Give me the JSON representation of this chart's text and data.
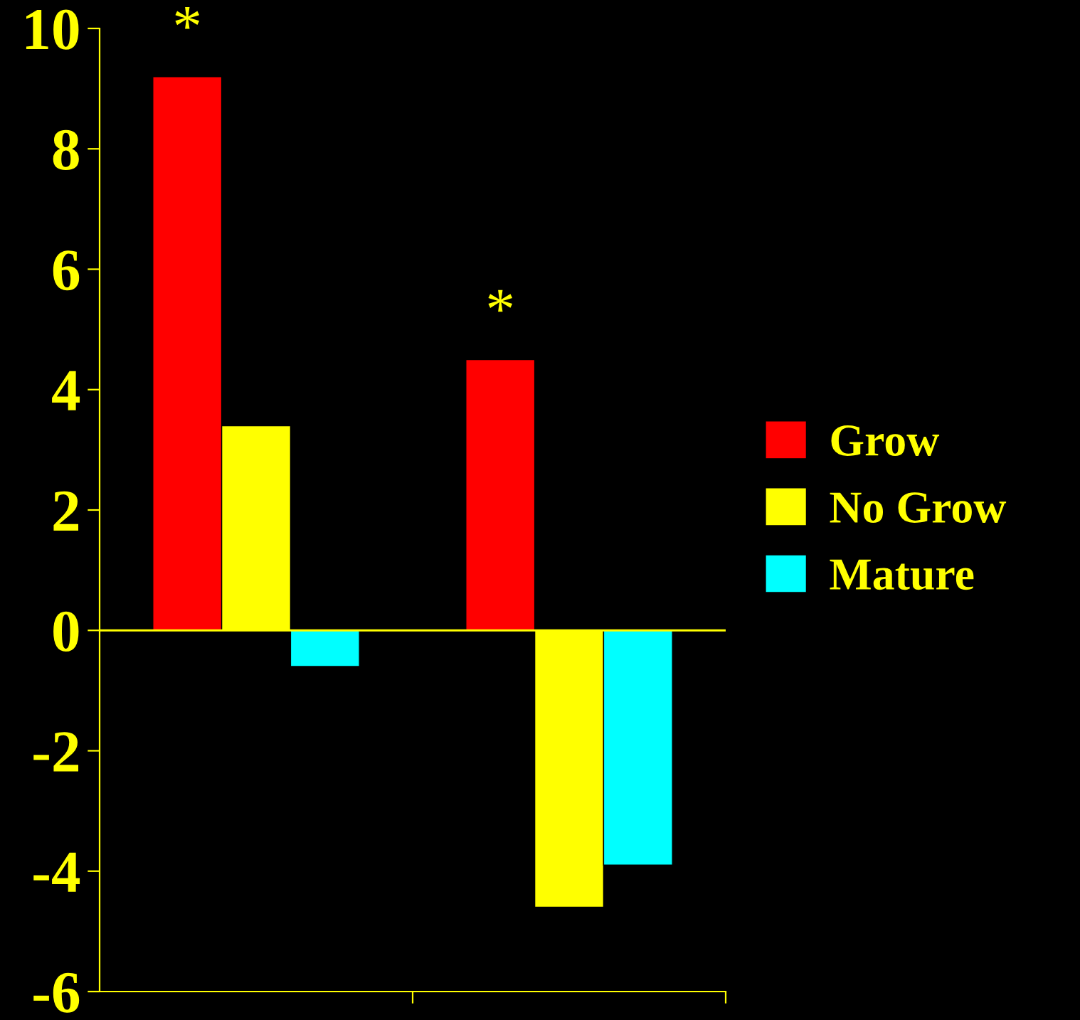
{
  "chart_data": {
    "type": "bar",
    "categories": [
      null,
      null
    ],
    "series": [
      {
        "name": "Grow",
        "color": "#ff0000",
        "values": [
          9.2,
          4.5
        ]
      },
      {
        "name": "No Grow",
        "color": "#ffff00",
        "values": [
          3.4,
          -4.6
        ]
      },
      {
        "name": "Mature",
        "color": "#00ffff",
        "values": [
          -0.6,
          -3.9
        ]
      }
    ],
    "ylim": [
      -6,
      10
    ],
    "yticks": [
      -6,
      -4,
      -2,
      0,
      2,
      4,
      6,
      8,
      10
    ],
    "tick_labels": "y",
    "grid": false,
    "legend": "right",
    "ref_lines": [
      {
        "axis": "y",
        "value": 0,
        "color": "#ffff00"
      }
    ],
    "annotations": [
      "*",
      "*"
    ]
  }
}
